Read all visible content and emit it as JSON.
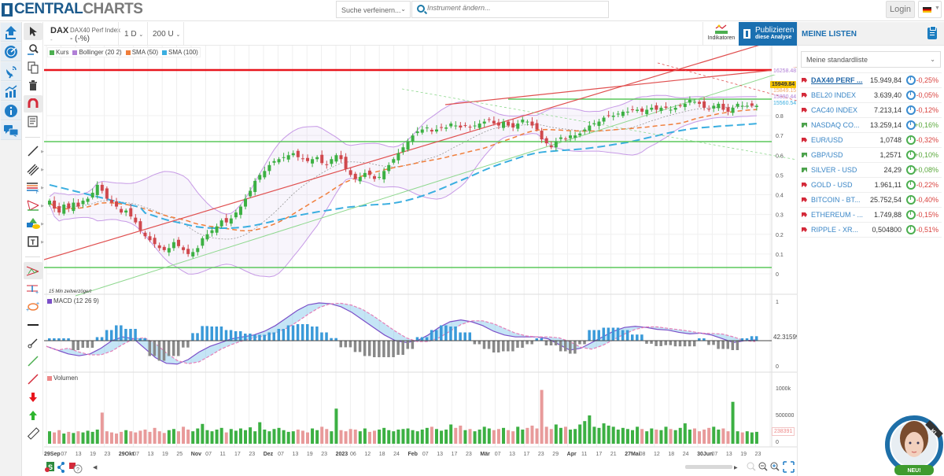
{
  "header": {
    "logo_part1": "CENTRAL",
    "logo_part2": "CHARTS",
    "search_refine_placeholder": "Suche verfeinern...",
    "instrument_placeholder": "Instrument ändern...",
    "login_label": "Login",
    "language": "DE"
  },
  "chart_header": {
    "symbol": "DAX",
    "symbol_dash": "-",
    "name": "DAX40 Perf Index",
    "change": "- (-%)",
    "timeframe": "1 D",
    "units": "200 U",
    "indicators_label": "Indikatoren",
    "publish_line1": "Publizieren",
    "publish_line2": "diese Analyse"
  },
  "legend": {
    "items": [
      {
        "label": "Kurs",
        "color": "#4caf50"
      },
      {
        "label": "Bollinger (20 2)",
        "color": "#b07fd6"
      },
      {
        "label": "SMA (50)",
        "color": "#f07e3b"
      },
      {
        "label": "SMA (100)",
        "color": "#3aaee0"
      }
    ],
    "delay_note": "15 Min zeitverzögert",
    "macd_label": "MACD (12 26 9)",
    "volume_label": "Volumen"
  },
  "price_labels": {
    "bollinger_upper": "16258.48",
    "last": "15949.84",
    "sma_hidden": "15849.15",
    "sma50": "15890.44",
    "sma100": "15560.54",
    "macd": "42.31599",
    "volume": "238391"
  },
  "axes": {
    "price_ticks": [
      "0.8",
      "0.7",
      "0.6",
      "0.5",
      "0.4",
      "0.3",
      "0.2",
      "0.1",
      "0"
    ],
    "macd_ticks": [
      "1",
      "0"
    ],
    "volume_ticks": [
      "1000k",
      "500000",
      "0"
    ],
    "x_labels": [
      {
        "t": "29Sep",
        "b": true
      },
      {
        "t": "07"
      },
      {
        "t": "13"
      },
      {
        "t": "19"
      },
      {
        "t": "23"
      },
      {
        "t": "29Okt",
        "b": true
      },
      {
        "t": "07"
      },
      {
        "t": "13"
      },
      {
        "t": "19"
      },
      {
        "t": "25"
      },
      {
        "t": "Nov",
        "b": true
      },
      {
        "t": "07"
      },
      {
        "t": "11"
      },
      {
        "t": "17"
      },
      {
        "t": "23"
      },
      {
        "t": "Dez",
        "b": true
      },
      {
        "t": "07"
      },
      {
        "t": "13"
      },
      {
        "t": "19"
      },
      {
        "t": "23"
      },
      {
        "t": "2023",
        "b": true
      },
      {
        "t": "06"
      },
      {
        "t": "12"
      },
      {
        "t": "18"
      },
      {
        "t": "24"
      },
      {
        "t": "Feb",
        "b": true
      },
      {
        "t": "07"
      },
      {
        "t": "13"
      },
      {
        "t": "17"
      },
      {
        "t": "23"
      },
      {
        "t": "Mär",
        "b": true
      },
      {
        "t": "07"
      },
      {
        "t": "13"
      },
      {
        "t": "17"
      },
      {
        "t": "23"
      },
      {
        "t": "29"
      },
      {
        "t": "Apr",
        "b": true
      },
      {
        "t": "11"
      },
      {
        "t": "17"
      },
      {
        "t": "21"
      },
      {
        "t": "27Mai",
        "b": true
      },
      {
        "t": "08"
      },
      {
        "t": "12"
      },
      {
        "t": "18"
      },
      {
        "t": "24"
      },
      {
        "t": "30Jun",
        "b": true
      },
      {
        "t": "07"
      },
      {
        "t": "13"
      },
      {
        "t": "19"
      },
      {
        "t": "23"
      }
    ]
  },
  "watchlist": {
    "title": "MEINE LISTEN",
    "selected_list": "Meine standardliste",
    "items": [
      {
        "name": "DAX40 PERF ...",
        "price": "15.949,84",
        "change": "-0,25%",
        "dir": "down",
        "clock": "blue",
        "active": true
      },
      {
        "name": "BEL20 INDEX",
        "price": "3.639,40",
        "change": "-0,05%",
        "dir": "down",
        "clock": "blue"
      },
      {
        "name": "CAC40 INDEX",
        "price": "7.213,14",
        "change": "-0,12%",
        "dir": "down",
        "clock": "blue"
      },
      {
        "name": "NASDAQ CO...",
        "price": "13.259,14",
        "change": "+0,16%",
        "dir": "up",
        "clock": "blue"
      },
      {
        "name": "EUR/USD",
        "price": "1,0748",
        "change": "-0,32%",
        "dir": "down",
        "clock": "green"
      },
      {
        "name": "GBP/USD",
        "price": "1,2571",
        "change": "+0,10%",
        "dir": "up",
        "clock": "green"
      },
      {
        "name": "SILVER - USD",
        "price": "24,29",
        "change": "+0,08%",
        "dir": "up",
        "clock": "green"
      },
      {
        "name": "GOLD - USD",
        "price": "1.961,11",
        "change": "-0,22%",
        "dir": "down",
        "clock": "green"
      },
      {
        "name": "BITCOIN - BT...",
        "price": "25.752,54",
        "change": "-0,40%",
        "dir": "down",
        "clock": "green"
      },
      {
        "name": "ETHEREUM - ...",
        "price": "1.749,88",
        "change": "-0,15%",
        "dir": "down",
        "clock": "green"
      },
      {
        "name": "RIPPLE - XR...",
        "price": "0,504800",
        "change": "-0,51%",
        "dir": "down",
        "clock": "green"
      }
    ]
  },
  "assistant": {
    "badge": "NEU!",
    "tag": "KI"
  },
  "colors": {
    "brand": "#1a6fb0",
    "up": "#4caf50",
    "down": "#d9534f",
    "resistance": "#e8141c",
    "support": "#5cc85c"
  },
  "series": {
    "closes": [
      0.37,
      0.33,
      0.31,
      0.35,
      0.33,
      0.36,
      0.34,
      0.37,
      0.38,
      0.41,
      0.45,
      0.42,
      0.38,
      0.36,
      0.34,
      0.31,
      0.32,
      0.29,
      0.26,
      0.22,
      0.19,
      0.17,
      0.15,
      0.13,
      0.12,
      0.13,
      0.16,
      0.14,
      0.12,
      0.1,
      0.11,
      0.13,
      0.18,
      0.2,
      0.22,
      0.24,
      0.27,
      0.26,
      0.28,
      0.31,
      0.34,
      0.38,
      0.42,
      0.47,
      0.5,
      0.52,
      0.55,
      0.57,
      0.58,
      0.59,
      0.6,
      0.61,
      0.59,
      0.58,
      0.57,
      0.58,
      0.59,
      0.56,
      0.55,
      0.58,
      0.6,
      0.58,
      0.53,
      0.5,
      0.48,
      0.49,
      0.51,
      0.5,
      0.48,
      0.49,
      0.52,
      0.55,
      0.58,
      0.61,
      0.64,
      0.67,
      0.7,
      0.72,
      0.73,
      0.74,
      0.72,
      0.73,
      0.74,
      0.74,
      0.76,
      0.75,
      0.74,
      0.75,
      0.74,
      0.75,
      0.76,
      0.77,
      0.78,
      0.76,
      0.75,
      0.77,
      0.75,
      0.74,
      0.76,
      0.78,
      0.77,
      0.75,
      0.73,
      0.68,
      0.66,
      0.64,
      0.67,
      0.69,
      0.68,
      0.7,
      0.7,
      0.71,
      0.73,
      0.75,
      0.76,
      0.77,
      0.79,
      0.8,
      0.8,
      0.81,
      0.82,
      0.82,
      0.83,
      0.83,
      0.82,
      0.83,
      0.84,
      0.83,
      0.84,
      0.84,
      0.83,
      0.84,
      0.85,
      0.86,
      0.88,
      0.87,
      0.86,
      0.84,
      0.83,
      0.85,
      0.86,
      0.83,
      0.82,
      0.84,
      0.86,
      0.85,
      0.85,
      0.85,
      0.85
    ],
    "macd": [
      -0.15,
      -0.25,
      -0.35,
      -0.4,
      -0.35,
      -0.2,
      0.0,
      0.1,
      0.05,
      -0.2,
      -0.45,
      -0.6,
      -0.62,
      -0.5,
      -0.3,
      -0.15,
      -0.05,
      0.05,
      0.1,
      0.15,
      0.25,
      0.4,
      0.6,
      0.8,
      0.95,
      1.0,
      0.98,
      0.9,
      0.75,
      0.55,
      0.35,
      0.15,
      0.0,
      -0.05,
      0.0,
      0.15,
      0.35,
      0.5,
      0.55,
      0.5,
      0.4,
      0.25,
      0.15,
      0.1,
      0.1,
      0.1,
      0.05,
      -0.1,
      -0.25,
      -0.2,
      -0.05,
      0.1,
      0.25,
      0.35,
      0.38,
      0.35,
      0.3,
      0.28,
      0.22,
      0.18,
      0.2,
      0.15,
      0.05,
      -0.05,
      0.0,
      0.02
    ],
    "volumes": [
      0.22,
      0.2,
      0.24,
      0.18,
      0.21,
      0.19,
      0.22,
      0.2,
      0.23,
      0.21,
      0.25,
      0.55,
      0.22,
      0.2,
      0.18,
      0.21,
      0.24,
      0.22,
      0.2,
      0.23,
      0.25,
      0.21,
      0.28,
      0.22,
      0.19,
      0.24,
      0.26,
      0.22,
      0.3,
      0.25,
      0.22,
      0.27,
      0.35,
      0.24,
      0.22,
      0.25,
      0.28,
      0.2,
      0.26,
      0.23,
      0.27,
      0.24,
      0.29,
      0.22,
      0.38,
      0.25,
      0.22,
      0.26,
      0.28,
      0.24,
      0.21,
      0.22,
      0.25,
      0.23,
      0.2,
      0.27,
      0.24,
      0.3,
      0.26,
      0.22,
      0.62,
      0.24,
      0.22,
      0.26,
      0.25,
      0.22,
      0.27,
      0.21,
      0.23,
      0.25,
      0.28,
      0.24,
      0.22,
      0.25,
      0.26,
      0.27,
      0.24,
      0.22,
      0.25,
      0.28,
      0.3,
      0.26,
      0.23,
      0.25,
      0.34,
      0.28,
      0.32,
      0.24,
      0.26,
      0.22,
      0.25,
      0.3,
      0.27,
      0.24,
      0.26,
      0.28,
      0.24,
      0.22,
      0.3,
      0.25,
      0.28,
      0.32,
      0.27,
      0.95,
      0.3,
      0.26,
      0.34,
      0.28,
      0.3,
      0.25,
      0.26,
      0.34,
      0.4,
      0.5,
      0.3,
      0.28,
      0.36,
      0.32,
      0.3,
      0.25,
      0.28,
      0.26,
      0.24,
      0.3,
      0.26,
      0.22,
      0.27,
      0.25,
      0.24,
      0.3,
      0.26,
      0.24,
      0.28,
      0.36,
      0.25,
      0.27,
      0.22,
      0.25,
      0.28,
      0.3,
      0.25,
      0.27,
      0.22,
      0.74,
      0.22,
      0.2,
      0.22,
      0.2,
      0.21
    ]
  }
}
